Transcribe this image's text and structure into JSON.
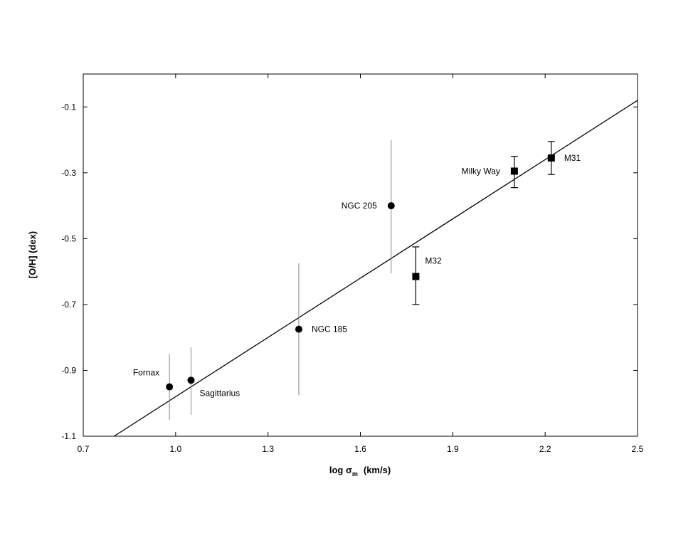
{
  "chart_data": {
    "type": "scatter",
    "xlabel": {
      "main": "log σ",
      "sub": "m",
      "unit": "(km/s)"
    },
    "ylabel": "[O/H]  (dex)",
    "xlim": [
      0.7,
      2.5
    ],
    "ylim": [
      -1.1,
      0.0
    ],
    "xticks": [
      0.7,
      1.0,
      1.3,
      1.6,
      1.9,
      2.2,
      2.5
    ],
    "xtick_labels": [
      "0.7",
      "1.0",
      "1.3",
      "1.6",
      "1.9",
      "2.2",
      "2.5"
    ],
    "yticks": [
      -1.1,
      -0.9,
      -0.7,
      -0.5,
      -0.3,
      -0.1
    ],
    "ytick_labels": [
      "-1.1",
      "-0.9",
      "-0.7",
      "-0.5",
      "-0.3",
      "-0.1"
    ],
    "grid": false,
    "fit_line": {
      "x": [
        0.7,
        2.5
      ],
      "y": [
        -1.16,
        -0.08
      ]
    },
    "series": [
      {
        "marker": "circle",
        "points": [
          {
            "label": "Fornax",
            "x": 0.98,
            "y": -0.95,
            "y_low": -1.05,
            "y_high": -0.85,
            "label_side": "left-up"
          },
          {
            "label": "Sagittarius",
            "x": 1.05,
            "y": -0.93,
            "y_low": -1.035,
            "y_high": -0.83,
            "label_side": "right-down"
          },
          {
            "label": "NGC 185",
            "x": 1.4,
            "y": -0.775,
            "y_low": -0.975,
            "y_high": -0.575,
            "label_side": "right"
          },
          {
            "label": "NGC 205",
            "x": 1.7,
            "y": -0.4,
            "y_low": -0.605,
            "y_high": -0.2,
            "label_side": "left"
          }
        ]
      },
      {
        "marker": "square",
        "points": [
          {
            "label": "M32",
            "x": 1.78,
            "y": -0.615,
            "y_low": -0.7,
            "y_high": -0.525,
            "label_side": "right-up"
          },
          {
            "label": "Milky Way",
            "x": 2.1,
            "y": -0.295,
            "y_low": -0.345,
            "y_high": -0.25,
            "label_side": "left"
          },
          {
            "label": "M31",
            "x": 2.22,
            "y": -0.255,
            "y_low": -0.305,
            "y_high": -0.205,
            "label_side": "right"
          }
        ]
      }
    ]
  }
}
